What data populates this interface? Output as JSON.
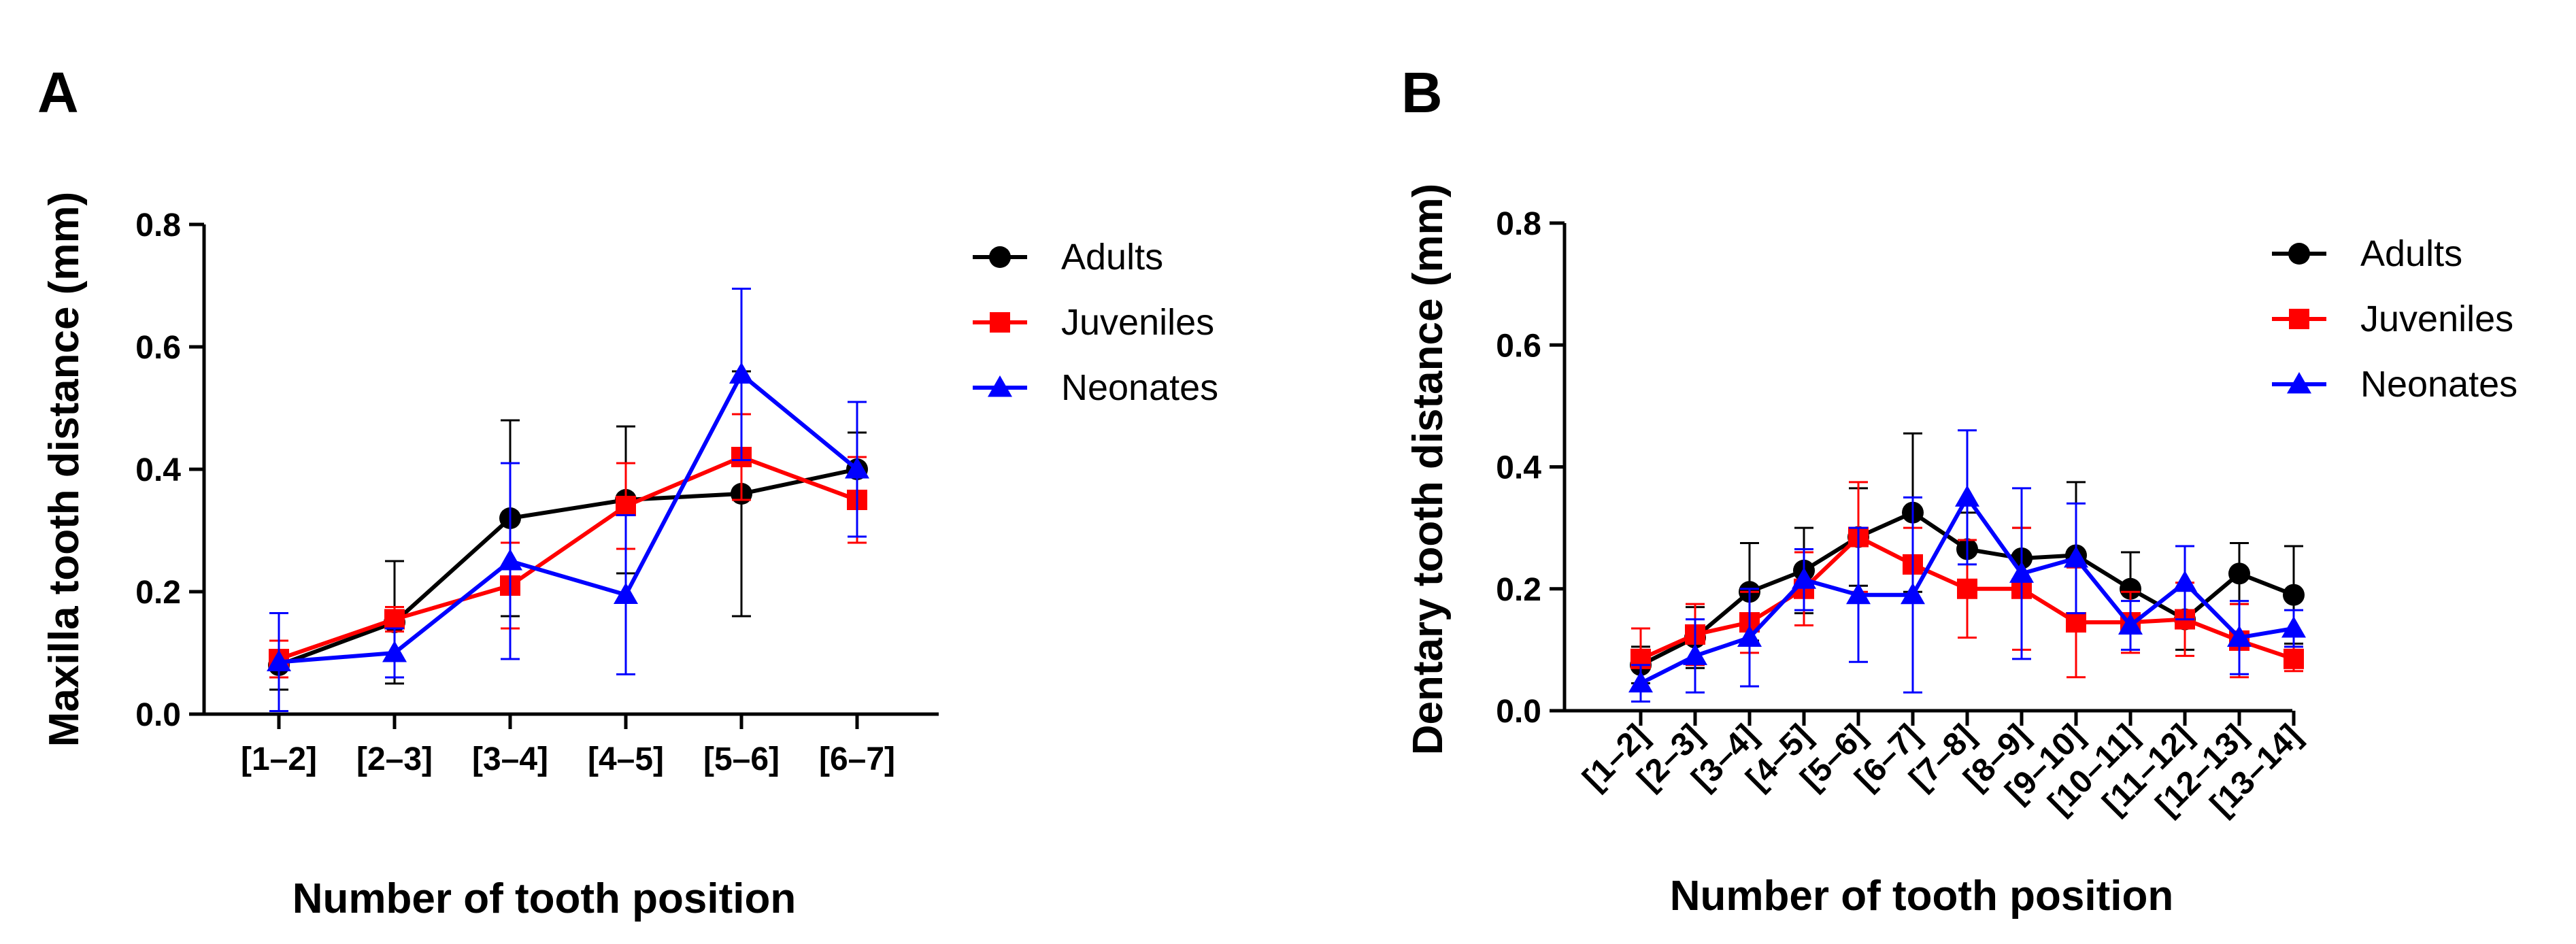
{
  "chart_data": [
    {
      "panel": "A",
      "type": "line",
      "title": "",
      "xlabel": "Number of tooth position",
      "ylabel": "Maxilla tooth distance (mm)",
      "ylim": [
        0,
        0.8
      ],
      "yticks": [
        "0.0",
        "0.2",
        "0.4",
        "0.6",
        "0.8"
      ],
      "categories": [
        "[1–2]",
        "[2–3]",
        "[3–4]",
        "[4–5]",
        "[5–6]",
        "[6–7]"
      ],
      "legend_position": "right",
      "series": [
        {
          "name": "Adults",
          "color": "#000000",
          "marker": "circle",
          "values": [
            0.08,
            0.15,
            0.32,
            0.35,
            0.36,
            0.4
          ],
          "errors": [
            0.04,
            0.1,
            0.16,
            0.12,
            0.2,
            0.06
          ]
        },
        {
          "name": "Juveniles",
          "color": "#ff0000",
          "marker": "square",
          "values": [
            0.09,
            0.155,
            0.21,
            0.34,
            0.42,
            0.35
          ],
          "errors": [
            0.03,
            0.02,
            0.07,
            0.07,
            0.07,
            0.07
          ]
        },
        {
          "name": "Neonates",
          "color": "#0000ff",
          "marker": "triangle",
          "values": [
            0.085,
            0.1,
            0.25,
            0.195,
            0.555,
            0.4
          ],
          "errors": [
            0.08,
            0.04,
            0.16,
            0.13,
            0.14,
            0.11
          ]
        }
      ]
    },
    {
      "panel": "B",
      "type": "line",
      "title": "",
      "xlabel": "Number of tooth position",
      "ylabel": "Dentary tooth distance (mm)",
      "ylim": [
        0,
        0.8
      ],
      "yticks": [
        "0.0",
        "0.2",
        "0.4",
        "0.6",
        "0.8"
      ],
      "categories": [
        "[1–2]",
        "[2–3]",
        "[3–4]",
        "[4–5]",
        "[5–6]",
        "[6–7]",
        "[7–8]",
        "[8–9]",
        "[9–10]",
        "[10–11]",
        "[11–12]",
        "[12–13]",
        "[13–14]"
      ],
      "legend_position": "right",
      "series": [
        {
          "name": "Adults",
          "color": "#000000",
          "marker": "circle",
          "values": [
            0.075,
            0.12,
            0.195,
            0.23,
            0.285,
            0.325,
            0.265,
            0.25,
            0.255,
            0.2,
            0.15,
            0.225,
            0.19
          ],
          "errors": [
            0.03,
            0.05,
            0.08,
            0.07,
            0.08,
            0.13,
            0.06,
            0.05,
            0.12,
            0.06,
            0.05,
            0.05,
            0.08
          ]
        },
        {
          "name": "Juveniles",
          "color": "#ff0000",
          "marker": "square",
          "values": [
            0.085,
            0.125,
            0.145,
            0.2,
            0.285,
            0.24,
            0.2,
            0.2,
            0.145,
            0.145,
            0.15,
            0.115,
            0.085
          ],
          "errors": [
            0.05,
            0.05,
            0.05,
            0.06,
            0.09,
            0.06,
            0.08,
            0.1,
            0.09,
            0.05,
            0.06,
            0.06,
            0.02
          ]
        },
        {
          "name": "Neonates",
          "color": "#0000ff",
          "marker": "triangle",
          "values": [
            0.045,
            0.09,
            0.12,
            0.215,
            0.19,
            0.19,
            0.35,
            0.225,
            0.25,
            0.14,
            0.21,
            0.12,
            0.135
          ],
          "errors": [
            0.03,
            0.06,
            0.08,
            0.05,
            0.11,
            0.16,
            0.11,
            0.14,
            0.09,
            0.04,
            0.06,
            0.06,
            0.03
          ]
        }
      ]
    }
  ]
}
